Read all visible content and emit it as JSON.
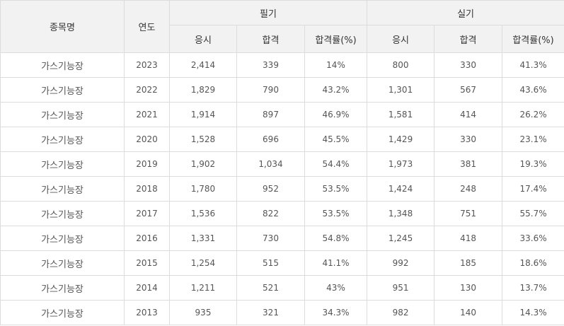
{
  "headers": {
    "item": "종목명",
    "year": "연도",
    "written": "필기",
    "practical": "실기",
    "applicants": "응시",
    "passed": "합격",
    "pass_rate": "합격률(%)"
  },
  "rows": [
    {
      "name": "가스기능장",
      "year": "2023",
      "w_apply": "2,414",
      "w_pass": "339",
      "w_rate": "14%",
      "p_apply": "800",
      "p_pass": "330",
      "p_rate": "41.3%"
    },
    {
      "name": "가스기능장",
      "year": "2022",
      "w_apply": "1,829",
      "w_pass": "790",
      "w_rate": "43.2%",
      "p_apply": "1,301",
      "p_pass": "567",
      "p_rate": "43.6%"
    },
    {
      "name": "가스기능장",
      "year": "2021",
      "w_apply": "1,914",
      "w_pass": "897",
      "w_rate": "46.9%",
      "p_apply": "1,581",
      "p_pass": "414",
      "p_rate": "26.2%"
    },
    {
      "name": "가스기능장",
      "year": "2020",
      "w_apply": "1,528",
      "w_pass": "696",
      "w_rate": "45.5%",
      "p_apply": "1,429",
      "p_pass": "330",
      "p_rate": "23.1%"
    },
    {
      "name": "가스기능장",
      "year": "2019",
      "w_apply": "1,902",
      "w_pass": "1,034",
      "w_rate": "54.4%",
      "p_apply": "1,973",
      "p_pass": "381",
      "p_rate": "19.3%"
    },
    {
      "name": "가스기능장",
      "year": "2018",
      "w_apply": "1,780",
      "w_pass": "952",
      "w_rate": "53.5%",
      "p_apply": "1,424",
      "p_pass": "248",
      "p_rate": "17.4%"
    },
    {
      "name": "가스기능장",
      "year": "2017",
      "w_apply": "1,536",
      "w_pass": "822",
      "w_rate": "53.5%",
      "p_apply": "1,348",
      "p_pass": "751",
      "p_rate": "55.7%"
    },
    {
      "name": "가스기능장",
      "year": "2016",
      "w_apply": "1,331",
      "w_pass": "730",
      "w_rate": "54.8%",
      "p_apply": "1,245",
      "p_pass": "418",
      "p_rate": "33.6%"
    },
    {
      "name": "가스기능장",
      "year": "2015",
      "w_apply": "1,254",
      "w_pass": "515",
      "w_rate": "41.1%",
      "p_apply": "992",
      "p_pass": "185",
      "p_rate": "18.6%"
    },
    {
      "name": "가스기능장",
      "year": "2014",
      "w_apply": "1,211",
      "w_pass": "521",
      "w_rate": "43%",
      "p_apply": "951",
      "p_pass": "130",
      "p_rate": "13.7%"
    },
    {
      "name": "가스기능장",
      "year": "2013",
      "w_apply": "935",
      "w_pass": "321",
      "w_rate": "34.3%",
      "p_apply": "982",
      "p_pass": "140",
      "p_rate": "14.3%"
    }
  ]
}
